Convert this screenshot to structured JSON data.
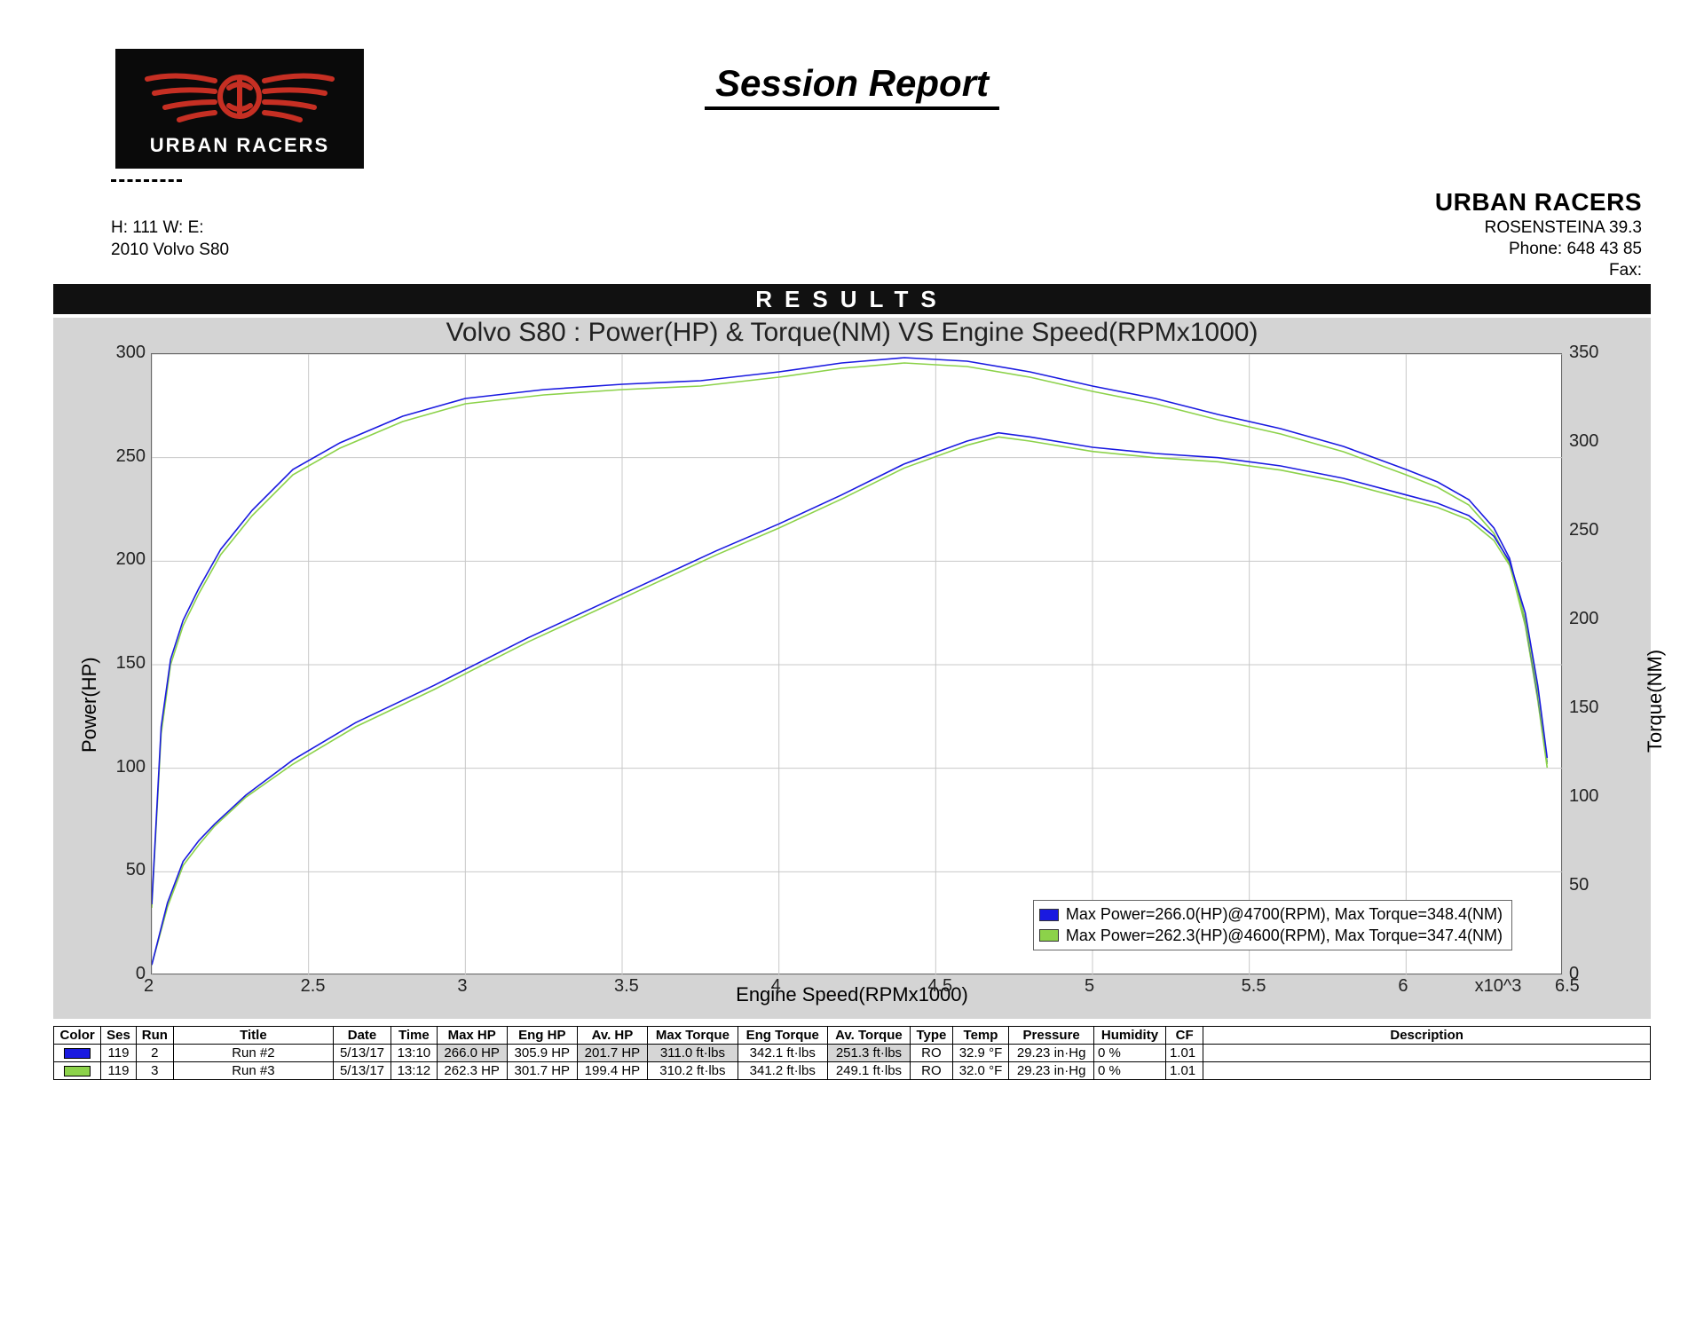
{
  "report": {
    "title": "Session Report",
    "results_label": "RESULTS"
  },
  "logo": {
    "brand": "URBAN RACERS",
    "wing_color": "#c62f23",
    "bg": "#0a0a0a"
  },
  "company": {
    "name": "URBAN RACERS",
    "address": "ROSENSTEINA 39.3",
    "phone_label": "Phone:",
    "phone": "648 43 85",
    "fax_label": "Fax:"
  },
  "session": {
    "line1": "H:  111   W:    E:",
    "line2": "2010 Volvo S80"
  },
  "chart": {
    "title": "Volvo S80 : Power(HP) & Torque(NM) VS Engine Speed(RPMx1000)",
    "x_label": "Engine Speed(RPMx1000)",
    "y_label": "Power(HP)",
    "y2_label": "Torque(NM)",
    "xlim": [
      2.0,
      6.5
    ],
    "ylim": [
      0,
      300
    ],
    "y2lim": [
      0,
      350
    ],
    "x_ticks": [
      2,
      2.5,
      3,
      3.5,
      4,
      4.5,
      5,
      5.5,
      6,
      6.5
    ],
    "x_tick_labels": [
      "2",
      "2.5",
      "3",
      "3.5",
      "4",
      "4.5",
      "5",
      "5.5",
      "6",
      "6.5"
    ],
    "x_exp_label": "x10^3",
    "y_ticks": [
      0,
      50,
      100,
      150,
      200,
      250,
      300
    ],
    "y2_ticks": [
      0,
      50,
      100,
      150,
      200,
      250,
      300,
      350
    ],
    "grid_color": "#c8c8c8",
    "bg": "#d4d4d4",
    "plot_bg": "#ffffff",
    "series": {
      "power_run2": {
        "color": "#1a1ae0",
        "x": [
          2.0,
          2.05,
          2.1,
          2.15,
          2.2,
          2.3,
          2.45,
          2.65,
          2.9,
          3.2,
          3.5,
          3.8,
          4.0,
          4.2,
          4.4,
          4.6,
          4.7,
          4.8,
          5.0,
          5.2,
          5.4,
          5.6,
          5.8,
          6.0,
          6.1,
          6.2,
          6.28,
          6.33,
          6.38,
          6.42,
          6.45
        ],
        "y": [
          5,
          35,
          55,
          65,
          73,
          87,
          104,
          122,
          140,
          163,
          184,
          205,
          218,
          232,
          247,
          258,
          262,
          260,
          255,
          252,
          250,
          246,
          240,
          232,
          228,
          222,
          212,
          200,
          175,
          140,
          105
        ]
      },
      "power_run3": {
        "color": "#8cd24a",
        "x": [
          2.0,
          2.05,
          2.1,
          2.15,
          2.2,
          2.3,
          2.45,
          2.65,
          2.9,
          3.2,
          3.5,
          3.8,
          4.0,
          4.2,
          4.4,
          4.6,
          4.7,
          4.8,
          5.0,
          5.2,
          5.4,
          5.6,
          5.8,
          6.0,
          6.1,
          6.2,
          6.28,
          6.33,
          6.38,
          6.42,
          6.45
        ],
        "y": [
          5,
          33,
          53,
          63,
          72,
          86,
          102,
          120,
          138,
          161,
          182,
          203,
          216,
          230,
          245,
          256,
          260,
          258,
          253,
          250,
          248,
          244,
          238,
          230,
          226,
          220,
          210,
          198,
          172,
          137,
          102
        ]
      },
      "torque_run2": {
        "color": "#1a1ae0",
        "x": [
          2.0,
          2.03,
          2.06,
          2.1,
          2.15,
          2.22,
          2.32,
          2.45,
          2.6,
          2.8,
          3.0,
          3.25,
          3.5,
          3.75,
          4.0,
          4.2,
          4.4,
          4.6,
          4.8,
          5.0,
          5.2,
          5.4,
          5.6,
          5.8,
          6.0,
          6.1,
          6.2,
          6.28,
          6.33,
          6.38,
          6.42,
          6.45
        ],
        "y": [
          40,
          140,
          178,
          200,
          218,
          240,
          262,
          285,
          300,
          315,
          325,
          330,
          333,
          335,
          340,
          345,
          348,
          346,
          340,
          332,
          325,
          316,
          308,
          298,
          285,
          278,
          268,
          252,
          235,
          200,
          158,
          120
        ]
      },
      "torque_run3": {
        "color": "#8cd24a",
        "x": [
          2.0,
          2.03,
          2.06,
          2.1,
          2.15,
          2.22,
          2.32,
          2.45,
          2.6,
          2.8,
          3.0,
          3.25,
          3.5,
          3.75,
          4.0,
          4.2,
          4.4,
          4.6,
          4.8,
          5.0,
          5.2,
          5.4,
          5.6,
          5.8,
          6.0,
          6.1,
          6.2,
          6.28,
          6.33,
          6.38,
          6.42,
          6.45
        ],
        "y": [
          38,
          136,
          175,
          197,
          215,
          237,
          259,
          282,
          297,
          312,
          322,
          327,
          330,
          332,
          337,
          342,
          345,
          343,
          337,
          329,
          322,
          313,
          305,
          295,
          282,
          275,
          265,
          249,
          232,
          197,
          155,
          117
        ]
      }
    },
    "legend": [
      {
        "color": "#1a1ae0",
        "text": "Max Power=266.0(HP)@4700(RPM), Max Torque=348.4(NM)"
      },
      {
        "color": "#8cd24a",
        "text": "Max Power=262.3(HP)@4600(RPM), Max Torque=347.4(NM)"
      }
    ]
  },
  "table": {
    "columns": [
      "Color",
      "Ses",
      "Run",
      "Title",
      "Date",
      "Time",
      "Max HP",
      "Eng HP",
      "Av. HP",
      "Max Torque",
      "Eng Torque",
      "Av. Torque",
      "Type",
      "Temp",
      "Pressure",
      "Humidity",
      "CF",
      "Description"
    ],
    "rows": [
      {
        "color": "#1a1ae0",
        "ses": "119",
        "run": "2",
        "title": "Run #2",
        "date": "5/13/17",
        "time": "13:10",
        "maxhp": "266.0 HP",
        "enghp": "305.9 HP",
        "avhp": "201.7 HP",
        "maxtq": "311.0 ft·lbs",
        "engtq": "342.1 ft·lbs",
        "avtq": "251.3 ft·lbs",
        "type": "RO",
        "temp": "32.9 °F",
        "press": "29.23 in·Hg",
        "hum": "0 %",
        "cf": "1.01",
        "desc": ""
      },
      {
        "color": "#8cd24a",
        "ses": "119",
        "run": "3",
        "title": "Run #3",
        "date": "5/13/17",
        "time": "13:12",
        "maxhp": "262.3 HP",
        "enghp": "301.7 HP",
        "avhp": "199.4 HP",
        "maxtq": "310.2 ft·lbs",
        "engtq": "341.2 ft·lbs",
        "avtq": "249.1 ft·lbs",
        "type": "RO",
        "temp": "32.0 °F",
        "press": "29.23 in·Hg",
        "hum": "0 %",
        "cf": "1.01",
        "desc": ""
      }
    ],
    "shaded_cols_row0": [
      "maxhp",
      "avhp",
      "maxtq",
      "avtq"
    ]
  }
}
